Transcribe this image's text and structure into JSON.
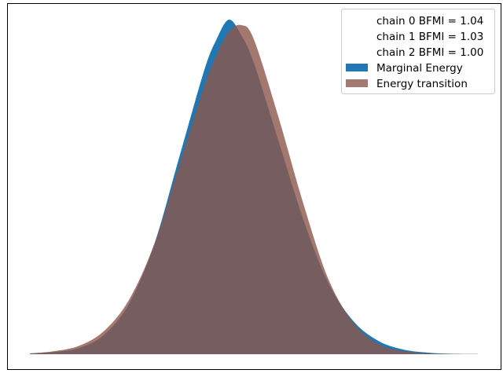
{
  "chart_data": {
    "type": "area",
    "title": "",
    "xlabel": "",
    "ylabel": "",
    "axes_ticks_visible": false,
    "grid": false,
    "legend_position": "top-right",
    "x_range": [
      -3.2,
      4.0
    ],
    "y_range": [
      0,
      0.44
    ],
    "series": [
      {
        "name": "Marginal Energy",
        "color": "#1f77b4",
        "x": [
          -3.2,
          -2.8,
          -2.4,
          -2.0,
          -1.6,
          -1.2,
          -0.8,
          -0.4,
          -0.2,
          0.0,
          0.2,
          0.4,
          0.8,
          1.2,
          1.6,
          2.0,
          2.4,
          2.8,
          3.2,
          3.6,
          4.0
        ],
        "y": [
          0.001,
          0.003,
          0.008,
          0.025,
          0.065,
          0.14,
          0.25,
          0.36,
          0.4,
          0.425,
          0.405,
          0.37,
          0.27,
          0.17,
          0.09,
          0.042,
          0.017,
          0.006,
          0.002,
          0.0005,
          0.0002
        ]
      },
      {
        "name": "Energy transition",
        "color": "#8c564b",
        "x": [
          -3.2,
          -2.8,
          -2.4,
          -2.0,
          -1.6,
          -1.2,
          -0.8,
          -0.4,
          -0.2,
          0.0,
          0.2,
          0.4,
          0.8,
          1.2,
          1.6,
          2.0,
          2.4,
          2.8,
          3.2,
          3.6,
          4.0
        ],
        "y": [
          0.001,
          0.004,
          0.011,
          0.03,
          0.07,
          0.14,
          0.24,
          0.34,
          0.38,
          0.41,
          0.418,
          0.4,
          0.3,
          0.19,
          0.095,
          0.04,
          0.013,
          0.004,
          0.001,
          0.0003,
          0.0001
        ]
      }
    ],
    "legend": {
      "entries": [
        {
          "label": "chain  0 BFMI = 1.04",
          "marker": "none"
        },
        {
          "label": "chain  1 BFMI = 1.03",
          "marker": "none"
        },
        {
          "label": "chain  2 BFMI = 1.00",
          "marker": "none"
        },
        {
          "label": "Marginal Energy",
          "marker": "patch",
          "color": "#1f77b4"
        },
        {
          "label": "Energy transition",
          "marker": "patch",
          "color": "#a37a72"
        }
      ]
    }
  }
}
